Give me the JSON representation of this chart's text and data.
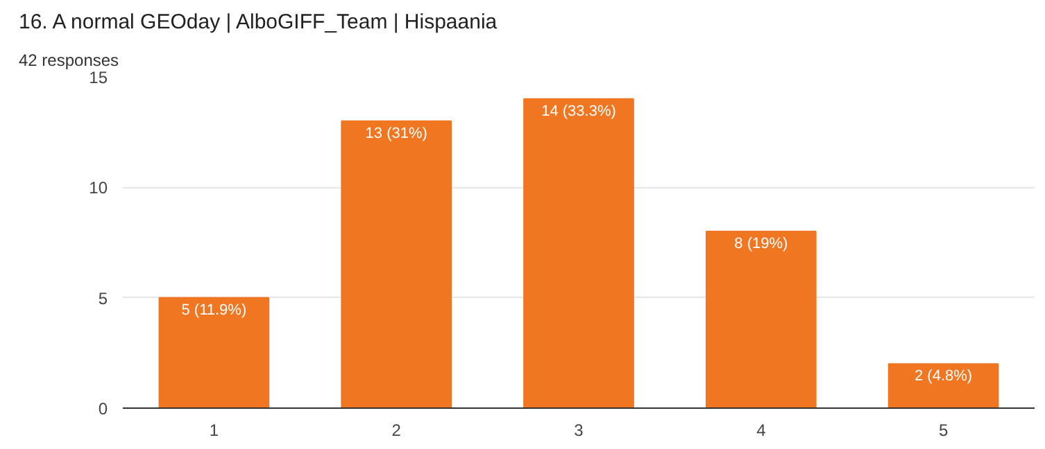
{
  "chart_data": {
    "type": "bar",
    "title": "16. A normal GEOday | AlboGIFF_Team | Hispaania",
    "subtitle": "42 responses",
    "categories": [
      "1",
      "2",
      "3",
      "4",
      "5"
    ],
    "values": [
      5,
      13,
      14,
      8,
      2
    ],
    "value_labels": [
      "5 (11.9%)",
      "13 (31%)",
      "14 (33.3%)",
      "8 (19%)",
      "2 (4.8%)"
    ],
    "color": "#f07621",
    "ylim": [
      0,
      15
    ],
    "yticks": [
      0,
      5,
      10,
      15
    ],
    "grid": "y"
  }
}
